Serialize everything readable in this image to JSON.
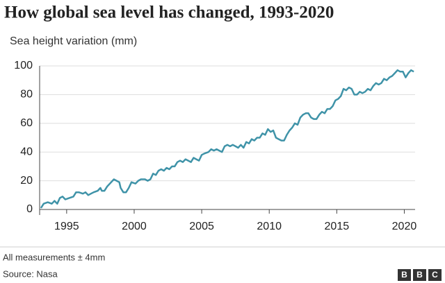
{
  "chart_data": {
    "type": "line",
    "title": "How global sea level has changed, 1993-2020",
    "y_label": "Sea height variation (mm)",
    "x": [
      1993.1,
      1993.3,
      1993.6,
      1993.9,
      1994.1,
      1994.3,
      1994.5,
      1994.7,
      1994.9,
      1995.2,
      1995.5,
      1995.7,
      1995.9,
      1996.2,
      1996.4,
      1996.6,
      1996.8,
      1997.0,
      1997.3,
      1997.5,
      1997.6,
      1997.8,
      1998.0,
      1998.3,
      1998.5,
      1998.7,
      1998.9,
      1999.0,
      1999.2,
      1999.4,
      1999.6,
      1999.8,
      2000.1,
      2000.3,
      2000.5,
      2000.8,
      2001.0,
      2001.2,
      2001.4,
      2001.6,
      2001.8,
      2002.0,
      2002.2,
      2002.4,
      2002.6,
      2002.8,
      2003.0,
      2003.2,
      2003.4,
      2003.6,
      2003.8,
      2004.0,
      2004.2,
      2004.4,
      2004.6,
      2004.8,
      2005.0,
      2005.2,
      2005.5,
      2005.7,
      2005.9,
      2006.1,
      2006.3,
      2006.5,
      2006.7,
      2006.9,
      2007.1,
      2007.3,
      2007.5,
      2007.7,
      2007.9,
      2008.1,
      2008.3,
      2008.5,
      2008.7,
      2008.9,
      2009.1,
      2009.3,
      2009.5,
      2009.7,
      2009.9,
      2010.1,
      2010.3,
      2010.5,
      2010.7,
      2010.9,
      2011.1,
      2011.3,
      2011.5,
      2011.7,
      2011.9,
      2012.1,
      2012.3,
      2012.5,
      2012.7,
      2012.9,
      2013.1,
      2013.3,
      2013.5,
      2013.7,
      2013.9,
      2014.1,
      2014.3,
      2014.5,
      2014.7,
      2014.9,
      2015.1,
      2015.3,
      2015.5,
      2015.7,
      2015.9,
      2016.1,
      2016.3,
      2016.5,
      2016.7,
      2016.9,
      2017.1,
      2017.3,
      2017.5,
      2017.7,
      2017.9,
      2018.1,
      2018.3,
      2018.5,
      2018.7,
      2018.9,
      2019.1,
      2019.3,
      2019.5,
      2019.7,
      2019.9,
      2020.1,
      2020.3,
      2020.5,
      2020.7
    ],
    "series": [
      {
        "color": "#3f93a8",
        "values": [
          1,
          4,
          5,
          4,
          6,
          4,
          8,
          9,
          7,
          8,
          9,
          12,
          12,
          11,
          12,
          10,
          11,
          12,
          13,
          15,
          13,
          13,
          16,
          19,
          21,
          20,
          19,
          15,
          12,
          12,
          15,
          19,
          18,
          20,
          21,
          21,
          20,
          21,
          25,
          24,
          27,
          28,
          27,
          29,
          28,
          30,
          30,
          33,
          34,
          33,
          35,
          34,
          33,
          36,
          35,
          34,
          38,
          39,
          40,
          42,
          41,
          42,
          41,
          40,
          44,
          45,
          44,
          45,
          44,
          43,
          45,
          43,
          47,
          46,
          49,
          48,
          50,
          50,
          53,
          52,
          56,
          54,
          55,
          50,
          49,
          48,
          48,
          52,
          55,
          57,
          60,
          59,
          64,
          66,
          67,
          67,
          64,
          63,
          63,
          66,
          68,
          67,
          70,
          70,
          72,
          76,
          77,
          79,
          84,
          83,
          85,
          84,
          80,
          80,
          82,
          81,
          82,
          84,
          83,
          86,
          88,
          87,
          88,
          91,
          90,
          92,
          93,
          95,
          97,
          96,
          96,
          92,
          95,
          97,
          96
        ]
      }
    ],
    "xlim": [
      1993,
      2020.8
    ],
    "xticks": [
      1995,
      2000,
      2005,
      2010,
      2015,
      2020
    ],
    "ylim": [
      0,
      100
    ],
    "yticks": [
      0,
      20,
      40,
      60,
      80,
      100
    ],
    "grid": true
  },
  "footer": {
    "note": "All measurements ± 4mm",
    "source": "Source: Nasa",
    "logo": [
      "B",
      "B",
      "C"
    ]
  }
}
